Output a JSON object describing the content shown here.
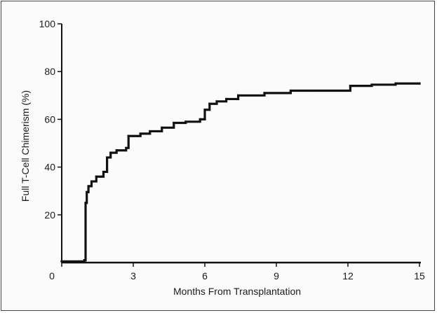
{
  "chart_data": {
    "type": "line",
    "title": "",
    "xlabel": "Months From Transplantation",
    "ylabel": "Full T-Cell Chimerism (%)",
    "xlim": [
      0,
      15
    ],
    "ylim": [
      0,
      100
    ],
    "x_ticks": [
      0,
      3,
      6,
      9,
      12,
      15
    ],
    "x_tick_labels": [
      "0",
      "3",
      "6",
      "9",
      "12",
      "15"
    ],
    "y_ticks": [
      20,
      40,
      60,
      80,
      100
    ],
    "y_tick_labels": [
      "20",
      "40",
      "60",
      "80",
      "100"
    ],
    "grid": false,
    "legend": "none",
    "line_color": "#111111",
    "series": [
      {
        "step": true,
        "x": [
          0,
          0.95,
          1.0,
          1.05,
          1.12,
          1.25,
          1.45,
          1.75,
          1.9,
          2.05,
          2.3,
          2.7,
          2.8,
          3.3,
          3.7,
          4.2,
          4.7,
          5.2,
          5.8,
          6.0,
          6.2,
          6.5,
          6.9,
          7.4,
          8.5,
          9.6,
          10.5,
          11.9,
          12.1,
          13.0,
          14.0,
          15.0
        ],
        "y": [
          0.5,
          1.0,
          25.0,
          29.5,
          32.0,
          34.0,
          36.0,
          38.0,
          44.0,
          46.0,
          47.0,
          48.0,
          53.0,
          54.0,
          55.0,
          56.5,
          58.5,
          59.0,
          60.0,
          64.0,
          66.5,
          67.5,
          68.5,
          70.0,
          71.0,
          72.0,
          72.0,
          72.0,
          74.0,
          74.5,
          75.0,
          75.0
        ]
      }
    ]
  }
}
